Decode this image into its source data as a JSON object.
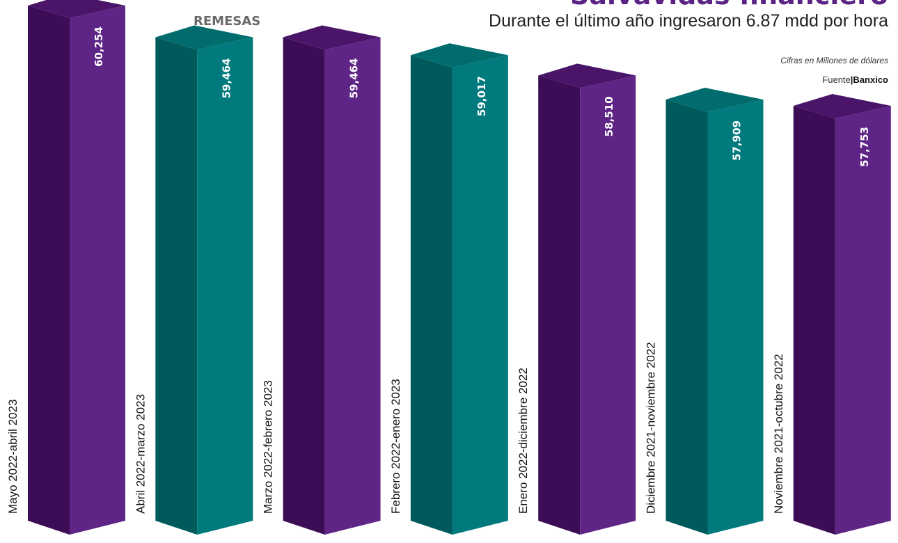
{
  "header": {
    "title": "Salvavidas financiero",
    "subtitle": "Durante el último año ingresaron 6.87 mdd por hora",
    "section_label": "REMESAS",
    "units_note": "Cifras en Millones de dólares",
    "source_prefix": "Fuente",
    "source_separator": "|",
    "source_name": "Banxico"
  },
  "colors": {
    "purple_front": "#5e2486",
    "purple_side": "#3c0d56",
    "purple_top": "#4a1568",
    "teal_front": "#007a7c",
    "teal_side": "#005a5c",
    "teal_top": "#006c6e"
  },
  "chart_data": {
    "type": "bar",
    "title": "Salvavidas financiero",
    "subtitle": "Durante el último año ingresaron 6.87 mdd por hora",
    "categories": [
      "Mayo 2022-abril 2023",
      "Abril 2022-marzo 2023",
      "Marzo 2022-febrero 2023",
      "Febrero 2022-enero 2023",
      "Enero 2022-diciembre 2022",
      "Diciembre 2021-noviembre 2022",
      "Noviembre 2021-octubre 2022"
    ],
    "values": [
      60254,
      59464,
      59464,
      59017,
      58510,
      57909,
      57753
    ],
    "value_labels": [
      "60,254",
      "59,464",
      "59,464",
      "59,017",
      "58,510",
      "57,909",
      "57,753"
    ],
    "bar_colors": [
      "purple",
      "teal",
      "purple",
      "teal",
      "purple",
      "teal",
      "purple"
    ],
    "style": "3d-columns",
    "grid": false,
    "legend": "none"
  }
}
